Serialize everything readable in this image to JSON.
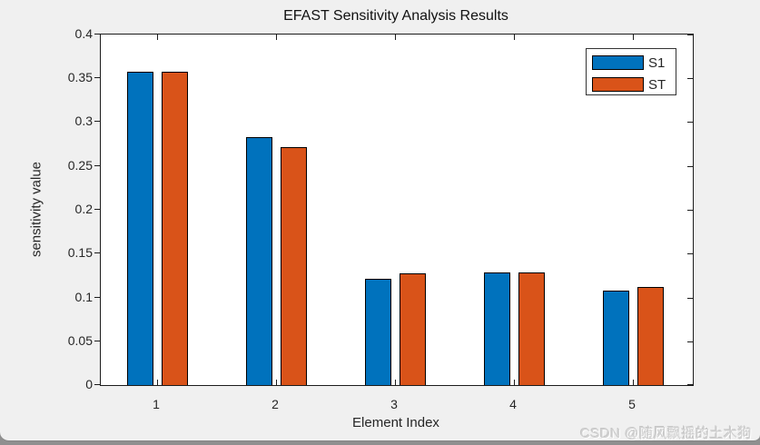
{
  "figure": {
    "background_color": "#f0f0f0",
    "plot_background_color": "#ffffff",
    "axis_color": "#1c1c1c",
    "tick_label_color": "#262626"
  },
  "chart_data": {
    "type": "bar",
    "title": "EFAST Sensitivity Analysis Results",
    "xlabel": "Element Index",
    "ylabel": "sensitivity value",
    "categories": [
      "1",
      "2",
      "3",
      "4",
      "5"
    ],
    "series": [
      {
        "name": "S1",
        "color": "#0072BD",
        "values": [
          0.358,
          0.283,
          0.121,
          0.128,
          0.108
        ]
      },
      {
        "name": "ST",
        "color": "#D95319",
        "values": [
          0.357,
          0.272,
          0.127,
          0.129,
          0.112
        ]
      }
    ],
    "ylim": [
      0,
      0.4
    ],
    "ytick_step": 0.05,
    "ytick_labels": [
      "0",
      "0.05",
      "0.1",
      "0.15",
      "0.2",
      "0.25",
      "0.3",
      "0.35",
      "0.4"
    ],
    "xlim": [
      0.5,
      5.5
    ],
    "grid": false,
    "legend_position": "northeast",
    "bar_edge_color": "#000000"
  },
  "watermark": {
    "text": "CSDN @随风飘摇的土木狗"
  }
}
